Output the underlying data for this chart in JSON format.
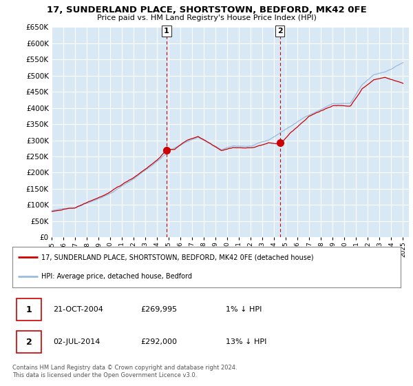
{
  "title": "17, SUNDERLAND PLACE, SHORTSTOWN, BEDFORD, MK42 0FE",
  "subtitle": "Price paid vs. HM Land Registry's House Price Index (HPI)",
  "ylim": [
    0,
    650000
  ],
  "yticks": [
    0,
    50000,
    100000,
    150000,
    200000,
    250000,
    300000,
    350000,
    400000,
    450000,
    500000,
    550000,
    600000,
    650000
  ],
  "background_color": "#d9e8f5",
  "grid_color": "#ffffff",
  "sale1_x": 2004.81,
  "sale1_price": 269995,
  "sale2_x": 2014.5,
  "sale2_price": 292000,
  "legend_line1": "17, SUNDERLAND PLACE, SHORTSTOWN, BEDFORD, MK42 0FE (detached house)",
  "legend_line2": "HPI: Average price, detached house, Bedford",
  "ann1_date": "21-OCT-2004",
  "ann1_price": "£269,995",
  "ann1_hpi": "1% ↓ HPI",
  "ann2_date": "02-JUL-2014",
  "ann2_price": "£292,000",
  "ann2_hpi": "13% ↓ HPI",
  "footer": "Contains HM Land Registry data © Crown copyright and database right 2024.\nThis data is licensed under the Open Government Licence v3.0.",
  "property_color": "#cc0000",
  "hpi_color": "#99bbdd",
  "vline_color": "#cc0000",
  "xstart": 1995,
  "xend": 2025.5
}
